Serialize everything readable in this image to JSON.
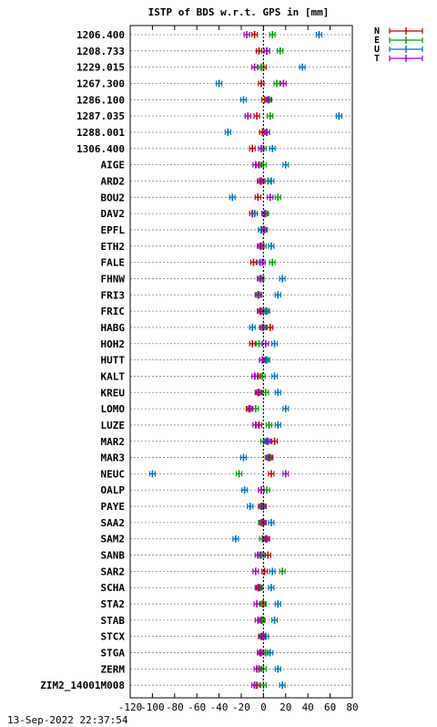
{
  "chart_data": {
    "type": "scatter",
    "title": "ISTP of BDS w.r.t. GPS in [mm]",
    "xlim": [
      -120,
      80
    ],
    "xticks": [
      -120,
      -100,
      -80,
      -60,
      -40,
      -20,
      0,
      20,
      40,
      60,
      80
    ],
    "grid": "horizontal dotted lines per station",
    "legend_position": "top-right, outside plot",
    "zero_line": 0,
    "categories": [
      "1206.400",
      "1208.733",
      "1229.015",
      "1267.300",
      "1286.100",
      "1287.035",
      "1288.001",
      "1306.400",
      "AIGE",
      "ARD2",
      "BOU2",
      "DAV2",
      "EPFL",
      "ETH2",
      "FALE",
      "FHNW",
      "FRI3",
      "FRIC",
      "HABG",
      "HOH2",
      "HUTT",
      "KALT",
      "KREU",
      "LOMO",
      "LUZE",
      "MAR2",
      "MAR3",
      "NEUC",
      "OALP",
      "PAYE",
      "SAA2",
      "SAM2",
      "SANB",
      "SAR2",
      "SCHA",
      "STA2",
      "STAB",
      "STCX",
      "STGA",
      "ZERM",
      "ZIM2_14001M008"
    ],
    "series": [
      {
        "name": "N",
        "color": "#c00000",
        "values": [
          -8,
          -4,
          0,
          -2,
          1,
          -6,
          -1,
          -10,
          -4,
          -3,
          -5,
          -10,
          -2,
          -3,
          -9,
          -3,
          -4,
          -3,
          6,
          -10,
          -1,
          -5,
          -4,
          -13,
          -4,
          10,
          6,
          7,
          -2,
          -2,
          -1,
          3,
          4,
          1,
          -4,
          -1,
          -2,
          -2,
          -3,
          -4,
          -6
        ]
      },
      {
        "name": "E",
        "color": "#00a000",
        "values": [
          8,
          15,
          -2,
          12,
          4,
          6,
          3,
          0,
          0,
          4,
          13,
          2,
          0,
          0,
          8,
          -2,
          -4,
          2,
          0,
          -4,
          2,
          -1,
          2,
          -7,
          5,
          0,
          4,
          -22,
          3,
          -1,
          -2,
          -1,
          -3,
          17,
          -3,
          0,
          -1,
          0,
          2,
          0,
          0
        ]
      },
      {
        "name": "U",
        "color": "#0070c0",
        "values": [
          50,
          3,
          35,
          -40,
          -18,
          68,
          -32,
          8,
          20,
          7,
          -28,
          -8,
          -2,
          7,
          -3,
          17,
          13,
          3,
          -10,
          10,
          3,
          10,
          13,
          20,
          13,
          3,
          -18,
          -100,
          -17,
          -12,
          7,
          -25,
          -2,
          8,
          7,
          13,
          10,
          2,
          6,
          13,
          17
        ]
      },
      {
        "name": "T",
        "color": "#a000c0",
        "values": [
          -15,
          3,
          -8,
          18,
          5,
          -14,
          3,
          -2,
          -7,
          -2,
          6,
          1,
          1,
          -2,
          -1,
          -3,
          -5,
          -2,
          -1,
          2,
          -1,
          -8,
          -5,
          -12,
          -7,
          4,
          5,
          20,
          -2,
          0,
          0,
          2,
          -5,
          -7,
          -5,
          -6,
          -5,
          -1,
          -2,
          -6,
          -8
        ]
      }
    ]
  },
  "footer": {
    "timestamp": "13-Sep-2022 22:37:54"
  }
}
